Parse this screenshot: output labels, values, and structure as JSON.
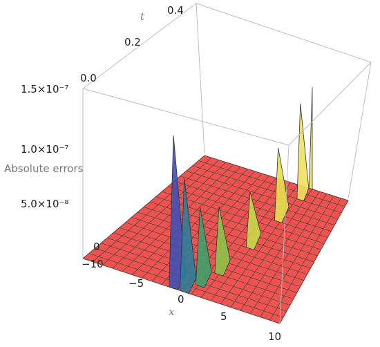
{
  "chart_data": {
    "type": "surface3d",
    "title": "",
    "axes": {
      "x": {
        "label": "x",
        "range": [
          -10,
          10
        ],
        "ticks": [
          "−10",
          "−5",
          "0",
          "5",
          "10"
        ]
      },
      "t": {
        "label": "t",
        "range": [
          0,
          0.4
        ],
        "ticks": [
          "0.0",
          "0.2",
          "0.4"
        ]
      },
      "z": {
        "label": "Absolute errors",
        "range": [
          0,
          1.5e-07
        ],
        "ticks": [
          "0",
          "5.0×10⁻⁸",
          "1.0×10⁻⁷",
          "1.5×10⁻⁷"
        ]
      }
    },
    "surface": {
      "description_free": true,
      "peaks": [
        {
          "x": -0.8,
          "t": 0.0,
          "z": 1.35e-07
        },
        {
          "x": 0.3,
          "t": 0.0,
          "z": 1e-07
        },
        {
          "x": 1.2,
          "t": 0.03,
          "z": 7e-08
        },
        {
          "x": 2.0,
          "t": 0.08,
          "z": 6e-08
        },
        {
          "x": 3.0,
          "t": 0.18,
          "z": 5e-08
        },
        {
          "x": 3.8,
          "t": 0.28,
          "z": 6.5e-08
        },
        {
          "x": 4.5,
          "t": 0.36,
          "z": 8.5e-08
        },
        {
          "x": 5.0,
          "t": 0.4,
          "z": 9e-08
        }
      ]
    },
    "colors": {
      "base": "#f0524f",
      "mesh": "#444444",
      "box": "#bdbdbd"
    },
    "grid": true
  }
}
